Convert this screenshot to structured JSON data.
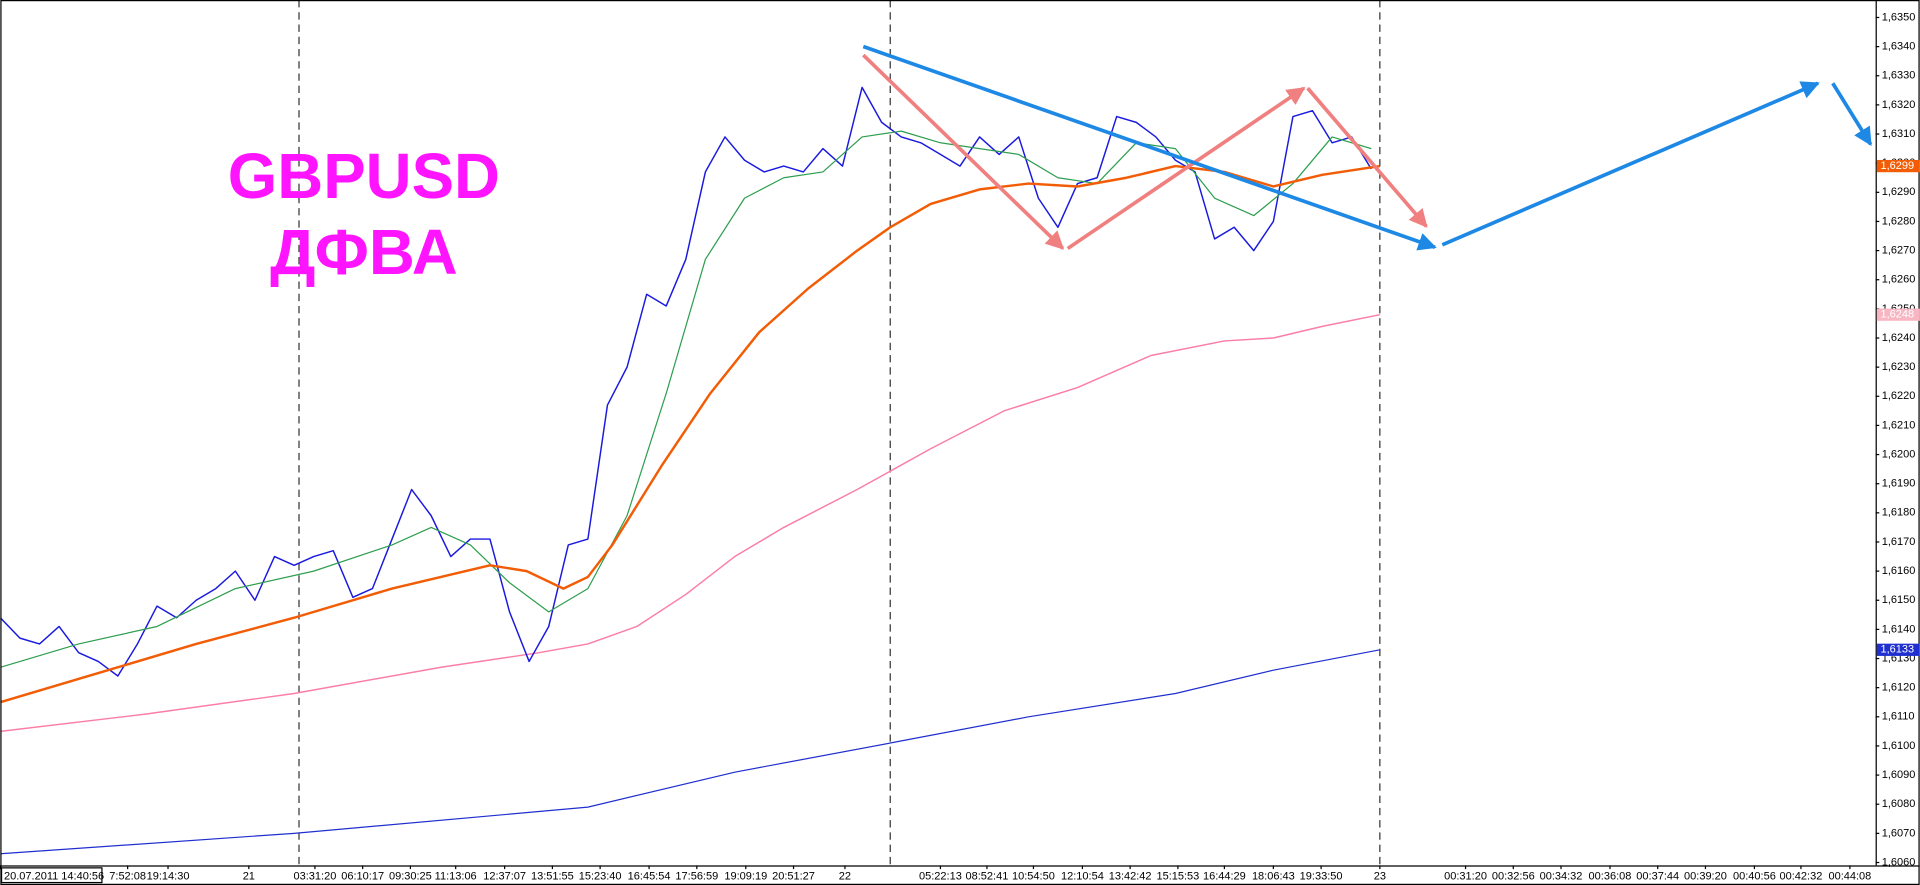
{
  "chart_data": {
    "type": "line",
    "annotations": [
      "GBPUSD",
      "ДФВА"
    ],
    "xlim": [
      0,
      383
    ],
    "ylim": [
      1.6059,
      1.6356
    ],
    "yticks": [
      {
        "value": 1.606,
        "label": "1,6060"
      },
      {
        "value": 1.607,
        "label": "1,6070"
      },
      {
        "value": 1.608,
        "label": "1,6080"
      },
      {
        "value": 1.609,
        "label": "1,6090"
      },
      {
        "value": 1.61,
        "label": "1,6100"
      },
      {
        "value": 1.611,
        "label": "1,6110"
      },
      {
        "value": 1.612,
        "label": "1,6120"
      },
      {
        "value": 1.613,
        "label": "1,6130"
      },
      {
        "value": 1.614,
        "label": "1,6140"
      },
      {
        "value": 1.615,
        "label": "1,6150"
      },
      {
        "value": 1.616,
        "label": "1,6160"
      },
      {
        "value": 1.617,
        "label": "1,6170"
      },
      {
        "value": 1.618,
        "label": "1,6180"
      },
      {
        "value": 1.619,
        "label": "1,6190"
      },
      {
        "value": 1.62,
        "label": "1,6200"
      },
      {
        "value": 1.621,
        "label": "1,6210"
      },
      {
        "value": 1.622,
        "label": "1,6220"
      },
      {
        "value": 1.623,
        "label": "1,6230"
      },
      {
        "value": 1.624,
        "label": "1,6240"
      },
      {
        "value": 1.625,
        "label": "1,6250"
      },
      {
        "value": 1.626,
        "label": "1,6260"
      },
      {
        "value": 1.627,
        "label": "1,6270"
      },
      {
        "value": 1.628,
        "label": "1,6280"
      },
      {
        "value": 1.629,
        "label": "1,6290"
      },
      {
        "value": 1.63,
        "label": "1,6300"
      },
      {
        "value": 1.631,
        "label": "1,6310"
      },
      {
        "value": 1.632,
        "label": "1,6320"
      },
      {
        "value": 1.633,
        "label": "1,6330"
      },
      {
        "value": 1.634,
        "label": "1,6340"
      },
      {
        "value": 1.635,
        "label": "1,6350"
      }
    ],
    "xticks": [
      {
        "value": 0,
        "label": "20.07.2011 14:40:56"
      },
      {
        "value": 26,
        "label": "7:52:08"
      },
      {
        "value": 34.25,
        "label": "19:14:30"
      },
      {
        "value": 50.75,
        "label": "21"
      },
      {
        "value": 64.25,
        "label": "03:31:20"
      },
      {
        "value": 74,
        "label": "06:10:17"
      },
      {
        "value": 83.75,
        "label": "09:30:25"
      },
      {
        "value": 93,
        "label": "11:13:06"
      },
      {
        "value": 103,
        "label": "12:37:07"
      },
      {
        "value": 112.75,
        "label": "13:51:55"
      },
      {
        "value": 122.5,
        "label": "15:23:40"
      },
      {
        "value": 132.5,
        "label": "16:45:54"
      },
      {
        "value": 142.25,
        "label": "17:56:59"
      },
      {
        "value": 152.25,
        "label": "19:09:19"
      },
      {
        "value": 162,
        "label": "20:51:27"
      },
      {
        "value": 172.5,
        "label": "22"
      },
      {
        "value": 192,
        "label": "05:22:13"
      },
      {
        "value": 201.5,
        "label": "08:52:41"
      },
      {
        "value": 211,
        "label": "10:54:50"
      },
      {
        "value": 221,
        "label": "12:10:54"
      },
      {
        "value": 230.75,
        "label": "13:42:42"
      },
      {
        "value": 240.5,
        "label": "15:15:53"
      },
      {
        "value": 250,
        "label": "16:44:29"
      },
      {
        "value": 260,
        "label": "18:06:43"
      },
      {
        "value": 269.75,
        "label": "19:33:50"
      },
      {
        "value": 281.75,
        "label": "23"
      },
      {
        "value": 299.25,
        "label": "00:31:20"
      },
      {
        "value": 309,
        "label": "00:32:56"
      },
      {
        "value": 318.75,
        "label": "00:34:32"
      },
      {
        "value": 328.75,
        "label": "00:36:08"
      },
      {
        "value": 338.5,
        "label": "00:37:44"
      },
      {
        "value": 348.25,
        "label": "00:39:20"
      },
      {
        "value": 358.25,
        "label": "00:40:56"
      },
      {
        "value": 367.75,
        "label": "00:42:32"
      },
      {
        "value": 377.75,
        "label": "00:44:08"
      }
    ],
    "series": [
      {
        "color": "#fb7ea5",
        "width": 1.2,
        "x": [
          0,
          30,
          60,
          90,
          110,
          120,
          130,
          140,
          150,
          160,
          175,
          190,
          205,
          220,
          235,
          250,
          260,
          270,
          281.75
        ],
        "values": [
          1.6105,
          1.6111,
          1.6118,
          1.6127,
          1.6132,
          1.6135,
          1.6141,
          1.6152,
          1.6165,
          1.6175,
          1.6188,
          1.6202,
          1.6215,
          1.6223,
          1.6234,
          1.6239,
          1.624,
          1.6244,
          1.6248
        ]
      },
      {
        "color": "#1f2fd0",
        "width": 1,
        "x": [
          0,
          60,
          120,
          150,
          181.75,
          210,
          240,
          260,
          281.75
        ],
        "values": [
          1.6063,
          1.607,
          1.6079,
          1.6091,
          1.6101,
          1.611,
          1.6118,
          1.6126,
          1.6133
        ]
      },
      {
        "color": "#1a1adf",
        "width": 1.2,
        "x": [
          0,
          4,
          8,
          12,
          16,
          20,
          24,
          28,
          32,
          36,
          40,
          44,
          48,
          52,
          56,
          60,
          64,
          68,
          72,
          76,
          80,
          84,
          88,
          92,
          96,
          100,
          104,
          108,
          112,
          116,
          120,
          124,
          128,
          132,
          136,
          140,
          144,
          148,
          152,
          156,
          160,
          164,
          168,
          172,
          176,
          180,
          184,
          188,
          192,
          196,
          200,
          204,
          208,
          212,
          216,
          220,
          224,
          228,
          232,
          236,
          240,
          244,
          248,
          252,
          256,
          260,
          264,
          268,
          272,
          276,
          280
        ],
        "values": [
          1.6144,
          1.6137,
          1.6135,
          1.6141,
          1.6132,
          1.6129,
          1.6124,
          1.6135,
          1.6148,
          1.6144,
          1.615,
          1.6154,
          1.616,
          1.615,
          1.6165,
          1.6162,
          1.6165,
          1.6167,
          1.6151,
          1.6154,
          1.6171,
          1.6188,
          1.6179,
          1.6165,
          1.6171,
          1.6171,
          1.6146,
          1.6129,
          1.6141,
          1.6169,
          1.6171,
          1.6217,
          1.623,
          1.6255,
          1.6251,
          1.6267,
          1.6297,
          1.6309,
          1.6301,
          1.6297,
          1.6299,
          1.6297,
          1.6305,
          1.6299,
          1.6326,
          1.6314,
          1.6309,
          1.6307,
          1.6303,
          1.6299,
          1.6309,
          1.6303,
          1.6309,
          1.6288,
          1.6278,
          1.6293,
          1.6295,
          1.6316,
          1.6314,
          1.6309,
          1.6301,
          1.6297,
          1.6274,
          1.6278,
          1.627,
          1.628,
          1.6316,
          1.6318,
          1.6307,
          1.6309,
          1.6298
        ]
      },
      {
        "color": "#2e9e4f",
        "width": 1,
        "x": [
          0,
          16,
          32,
          48,
          64,
          80,
          88,
          96,
          104,
          112,
          120,
          128,
          136,
          144,
          152,
          160,
          168,
          176,
          184,
          192,
          200,
          208,
          216,
          224,
          232,
          240,
          248,
          256,
          264,
          272,
          280
        ],
        "values": [
          1.6127,
          1.6135,
          1.6141,
          1.6154,
          1.616,
          1.6169,
          1.6175,
          1.6169,
          1.6156,
          1.6146,
          1.6154,
          1.6179,
          1.6221,
          1.6267,
          1.6288,
          1.6295,
          1.6297,
          1.6309,
          1.6311,
          1.6307,
          1.6305,
          1.6303,
          1.6295,
          1.6293,
          1.6307,
          1.6305,
          1.6288,
          1.6282,
          1.6293,
          1.6309,
          1.6305
        ]
      },
      {
        "color": "#f25c05",
        "width": 2,
        "x": [
          0,
          20,
          40,
          60,
          80,
          100,
          107.5,
          115,
          120,
          125,
          135,
          145,
          155,
          165,
          175,
          181.75,
          190,
          200,
          210,
          220,
          230,
          240,
          250,
          260,
          270,
          281.75
        ],
        "values": [
          1.6115,
          1.6125,
          1.6135,
          1.6144,
          1.6154,
          1.6162,
          1.616,
          1.6154,
          1.6158,
          1.6169,
          1.6196,
          1.6221,
          1.6242,
          1.6257,
          1.627,
          1.6278,
          1.6286,
          1.6291,
          1.6293,
          1.6292,
          1.6295,
          1.6299,
          1.6297,
          1.6292,
          1.6296,
          1.6299
        ]
      }
    ],
    "price_labels": [
      {
        "value": 1.6299,
        "label": "1,6299",
        "color": "#f25c05"
      },
      {
        "value": 1.6248,
        "label": "1,6248",
        "color": "#f7b6c2"
      },
      {
        "value": 1.6133,
        "label": "1,6133",
        "color": "#1f2fd0"
      }
    ]
  }
}
